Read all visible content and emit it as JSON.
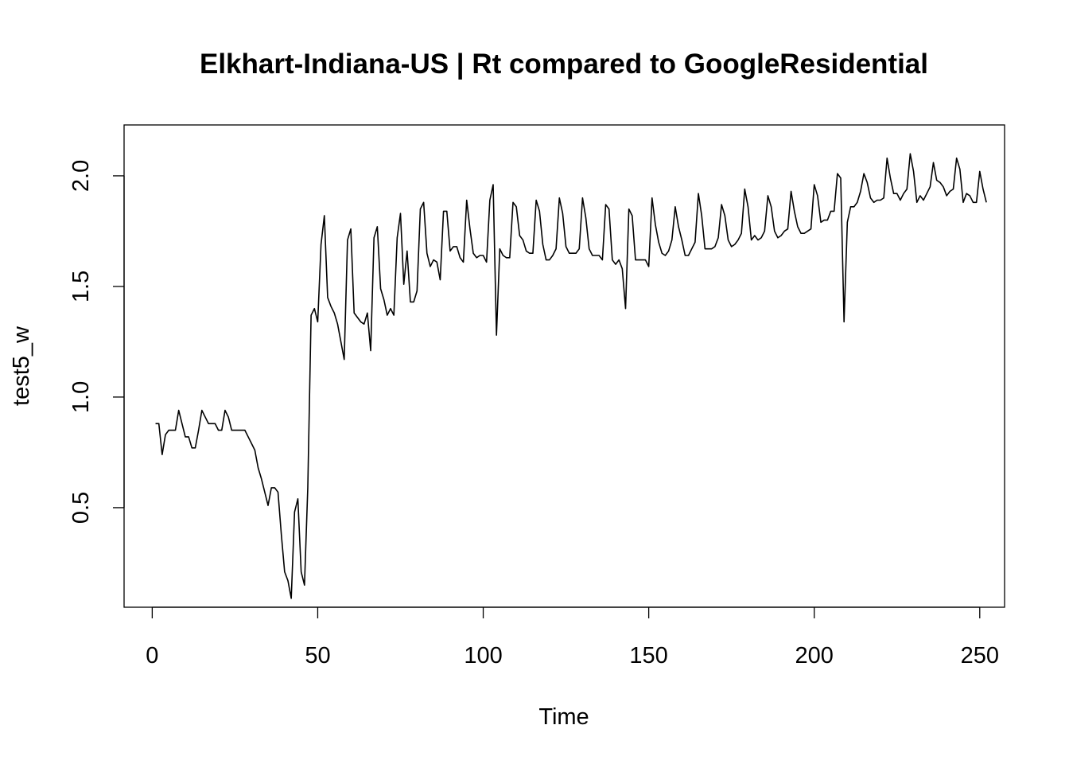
{
  "chart_data": {
    "type": "line",
    "title": "Elkhart-Indiana-US | Rt compared to GoogleResidential",
    "xlabel": "Time",
    "ylabel": "test5_w",
    "xlim": [
      -8.5,
      257.5
    ],
    "ylim": [
      0.05,
      2.23
    ],
    "x_ticks": [
      0,
      50,
      100,
      150,
      200,
      250
    ],
    "y_ticks": [
      0.5,
      1.0,
      1.5,
      2.0
    ],
    "x_tick_labels": [
      "0",
      "50",
      "100",
      "150",
      "200",
      "250"
    ],
    "y_tick_labels": [
      "0.5",
      "1.0",
      "1.5",
      "2.0"
    ],
    "grid": false,
    "legend": "none",
    "series": [
      {
        "color": "#000000",
        "x_start": 1,
        "values": [
          0.88,
          0.88,
          0.74,
          0.83,
          0.85,
          0.85,
          0.85,
          0.94,
          0.88,
          0.82,
          0.82,
          0.77,
          0.77,
          0.85,
          0.94,
          0.91,
          0.88,
          0.88,
          0.88,
          0.85,
          0.85,
          0.94,
          0.91,
          0.85,
          0.85,
          0.85,
          0.85,
          0.85,
          0.82,
          0.79,
          0.76,
          0.68,
          0.63,
          0.57,
          0.51,
          0.59,
          0.59,
          0.57,
          0.38,
          0.21,
          0.17,
          0.09,
          0.48,
          0.54,
          0.21,
          0.15,
          0.59,
          1.37,
          1.4,
          1.34,
          1.69,
          1.82,
          1.45,
          1.41,
          1.38,
          1.33,
          1.25,
          1.17,
          1.71,
          1.76,
          1.38,
          1.36,
          1.34,
          1.33,
          1.38,
          1.21,
          1.72,
          1.77,
          1.49,
          1.44,
          1.37,
          1.4,
          1.37,
          1.72,
          1.83,
          1.51,
          1.66,
          1.43,
          1.43,
          1.48,
          1.85,
          1.88,
          1.65,
          1.59,
          1.62,
          1.61,
          1.53,
          1.84,
          1.84,
          1.66,
          1.68,
          1.68,
          1.63,
          1.61,
          1.89,
          1.76,
          1.65,
          1.63,
          1.64,
          1.64,
          1.61,
          1.89,
          1.96,
          1.28,
          1.67,
          1.64,
          1.63,
          1.63,
          1.88,
          1.86,
          1.73,
          1.71,
          1.66,
          1.65,
          1.65,
          1.89,
          1.84,
          1.69,
          1.62,
          1.62,
          1.64,
          1.67,
          1.9,
          1.83,
          1.68,
          1.65,
          1.65,
          1.65,
          1.67,
          1.9,
          1.81,
          1.67,
          1.64,
          1.64,
          1.64,
          1.62,
          1.87,
          1.85,
          1.62,
          1.6,
          1.62,
          1.58,
          1.4,
          1.85,
          1.82,
          1.62,
          1.62,
          1.62,
          1.62,
          1.59,
          1.9,
          1.78,
          1.7,
          1.65,
          1.64,
          1.66,
          1.71,
          1.86,
          1.77,
          1.71,
          1.64,
          1.64,
          1.67,
          1.7,
          1.92,
          1.82,
          1.67,
          1.67,
          1.67,
          1.68,
          1.72,
          1.87,
          1.82,
          1.71,
          1.68,
          1.69,
          1.71,
          1.74,
          1.94,
          1.86,
          1.71,
          1.73,
          1.71,
          1.72,
          1.75,
          1.91,
          1.86,
          1.75,
          1.72,
          1.73,
          1.75,
          1.76,
          1.93,
          1.84,
          1.77,
          1.74,
          1.74,
          1.75,
          1.76,
          1.96,
          1.91,
          1.79,
          1.8,
          1.8,
          1.84,
          1.84,
          2.01,
          1.99,
          1.34,
          1.79,
          1.86,
          1.86,
          1.88,
          1.93,
          2.01,
          1.97,
          1.9,
          1.88,
          1.89,
          1.89,
          1.9,
          2.08,
          1.99,
          1.92,
          1.92,
          1.89,
          1.92,
          1.94,
          2.1,
          2.02,
          1.88,
          1.91,
          1.89,
          1.92,
          1.95,
          2.06,
          1.98,
          1.97,
          1.95,
          1.91,
          1.93,
          1.94,
          2.08,
          2.03,
          1.88,
          1.92,
          1.91,
          1.88,
          1.88,
          2.02,
          1.94,
          1.88
        ]
      }
    ]
  }
}
